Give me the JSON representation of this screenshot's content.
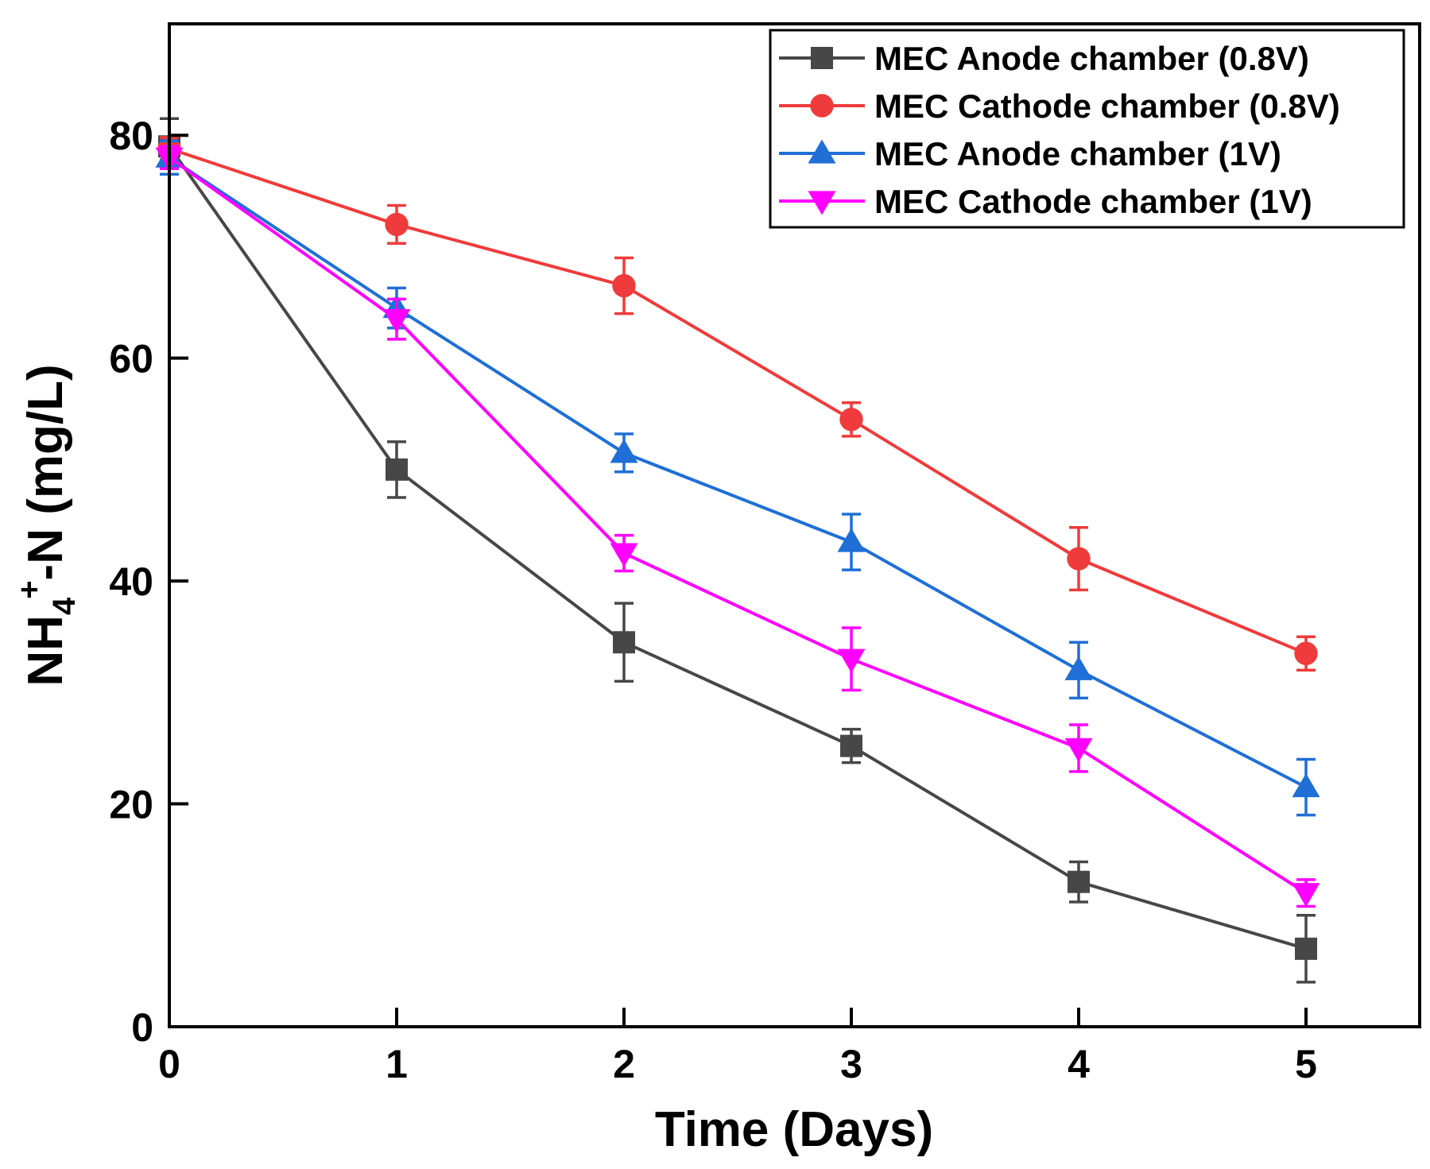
{
  "chart_data": {
    "type": "line",
    "title": "",
    "xlabel": "Time (Days)",
    "ylabel": {
      "main": "NH",
      "subscript": "4",
      "superscript": "+",
      "suffix": "-N (mg/L)"
    },
    "xlim": [
      0,
      5.5
    ],
    "ylim": [
      0,
      90
    ],
    "x_ticks": [
      0,
      1,
      2,
      3,
      4,
      5
    ],
    "y_ticks": [
      0,
      20,
      40,
      60,
      80
    ],
    "grid": false,
    "legend_position": "top-right",
    "series": [
      {
        "name": "MEC Anode chamber (0.8V)",
        "color": "#474747",
        "marker": "square",
        "x": [
          0,
          1,
          2,
          3,
          4,
          5
        ],
        "values": [
          79.0,
          50.0,
          34.5,
          25.2,
          13.0,
          7.0
        ],
        "errors": [
          2.5,
          2.5,
          3.5,
          1.5,
          1.8,
          3.0
        ]
      },
      {
        "name": "MEC Cathode chamber (0.8V)",
        "color": "#ef3b3b",
        "marker": "circle",
        "x": [
          0,
          1,
          2,
          3,
          4,
          5
        ],
        "values": [
          78.8,
          72.0,
          66.5,
          54.5,
          42.0,
          33.5
        ],
        "errors": [
          1.0,
          1.7,
          2.5,
          1.5,
          2.8,
          1.5
        ]
      },
      {
        "name": "MEC Anode chamber (1V)",
        "color": "#1f6fd6",
        "marker": "triangle-up",
        "x": [
          0,
          1,
          2,
          3,
          4,
          5
        ],
        "values": [
          78.0,
          64.5,
          51.5,
          43.5,
          32.0,
          21.5
        ],
        "errors": [
          1.5,
          1.8,
          1.7,
          2.5,
          2.5,
          2.5
        ]
      },
      {
        "name": "MEC Cathode chamber (1V)",
        "color": "#ff00ff",
        "marker": "triangle-down",
        "x": [
          0,
          1,
          2,
          3,
          4,
          5
        ],
        "values": [
          78.0,
          63.5,
          42.5,
          33.0,
          25.0,
          12.0
        ],
        "errors": [
          1.0,
          1.8,
          1.6,
          2.8,
          2.1,
          1.2
        ]
      }
    ]
  }
}
